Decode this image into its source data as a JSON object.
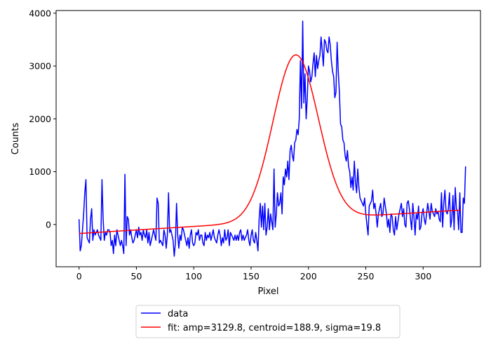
{
  "chart_data": {
    "type": "line",
    "title": "",
    "xlabel": "Pixel",
    "ylabel": "Counts",
    "xlim": [
      -20,
      350
    ],
    "ylim": [
      -800,
      4050
    ],
    "xticks": [
      0,
      50,
      100,
      150,
      200,
      250,
      300
    ],
    "yticks": [
      0,
      1000,
      2000,
      3000,
      4000
    ],
    "grid": false,
    "legend_position": "below-center",
    "series": [
      {
        "name": "data",
        "color": "#0000ff",
        "x_start": 0,
        "x_step": 1,
        "values": [
          100,
          -500,
          -400,
          -100,
          200,
          600,
          850,
          -250,
          -300,
          -350,
          100,
          300,
          -300,
          -100,
          -200,
          -150,
          -100,
          -200,
          -250,
          -300,
          850,
          100,
          -300,
          -150,
          -200,
          -100,
          -100,
          -150,
          -400,
          -300,
          -550,
          -200,
          -400,
          -100,
          -200,
          -300,
          -400,
          -300,
          -400,
          -550,
          950,
          -400,
          150,
          100,
          -200,
          -100,
          -250,
          -350,
          -300,
          -200,
          -100,
          -250,
          -50,
          -200,
          -150,
          -300,
          -100,
          -200,
          -250,
          -100,
          -350,
          -150,
          -400,
          -300,
          -200,
          -100,
          -200,
          -300,
          500,
          400,
          -350,
          -300,
          -350,
          -400,
          -100,
          -200,
          -450,
          -200,
          600,
          -150,
          -100,
          -200,
          -300,
          -600,
          -350,
          400,
          -200,
          -450,
          -200,
          -300,
          -50,
          -100,
          -200,
          -300,
          -400,
          -250,
          -450,
          -200,
          -100,
          -350,
          -400,
          -350,
          -150,
          -200,
          -100,
          -300,
          -200,
          -200,
          -350,
          -400,
          -150,
          -300,
          -200,
          -250,
          -150,
          -300,
          -200,
          -100,
          -250,
          -300,
          -350,
          -200,
          -100,
          -200,
          -400,
          -250,
          -350,
          -100,
          -300,
          -250,
          -100,
          -400,
          -150,
          -200,
          -250,
          -300,
          -200,
          -300,
          -200,
          -300,
          -150,
          -100,
          -300,
          -200,
          -300,
          -250,
          -200,
          -100,
          -300,
          -400,
          -200,
          -100,
          -300,
          -350,
          -150,
          -300,
          -500,
          100,
          400,
          -50,
          350,
          -100,
          400,
          -200,
          -50,
          300,
          -100,
          200,
          50,
          -100,
          1050,
          -50,
          200,
          600,
          350,
          400,
          600,
          200,
          900,
          750,
          1050,
          900,
          1200,
          850,
          1400,
          1500,
          1300,
          1200,
          1550,
          1600,
          1800,
          1700,
          2000,
          3100,
          2200,
          3850,
          2300,
          2850,
          2000,
          2400,
          3000,
          2900,
          2700,
          2800,
          3050,
          3250,
          2800,
          3200,
          2950,
          3100,
          3200,
          3550,
          3300,
          3000,
          3500,
          3450,
          3300,
          3250,
          3550,
          3400,
          3100,
          2900,
          2800,
          2400,
          2500,
          3450,
          2900,
          2500,
          1900,
          1850,
          1600,
          1550,
          1300,
          1200,
          1400,
          1100,
          1000,
          700,
          900,
          650,
          1200,
          800,
          600,
          1050,
          700,
          500,
          450,
          400,
          350,
          500,
          200,
          0,
          -200,
          350,
          400,
          450,
          650,
          300,
          400,
          200,
          -50,
          200,
          300,
          400,
          150,
          200,
          500,
          350,
          200,
          -50,
          100,
          -150,
          200,
          150,
          -100,
          -200,
          150,
          -100,
          50,
          200,
          300,
          400,
          150,
          300,
          0,
          -50,
          400,
          450,
          300,
          100,
          -100,
          400,
          150,
          -200,
          200,
          100,
          350,
          -100,
          -50,
          200,
          300,
          100,
          0,
          200,
          400,
          250,
          100,
          400,
          250,
          200,
          150,
          300,
          200,
          250,
          100,
          50,
          600,
          -50,
          400,
          650,
          250,
          200,
          300,
          600,
          -50,
          100,
          550,
          -100,
          700,
          300,
          250,
          -100,
          600,
          -150,
          -150,
          500,
          400,
          1100
        ]
      },
      {
        "name": "fit: amp=3129.8, centroid=188.9, sigma=19.8",
        "color": "#ff0000",
        "model": "gaussian_plus_linear",
        "amplitude": 3129.8,
        "centroid": 188.9,
        "sigma": 19.8,
        "baseline_at_0": -170,
        "baseline_slope": 1.33,
        "x_range": [
          0,
          333
        ]
      }
    ]
  }
}
